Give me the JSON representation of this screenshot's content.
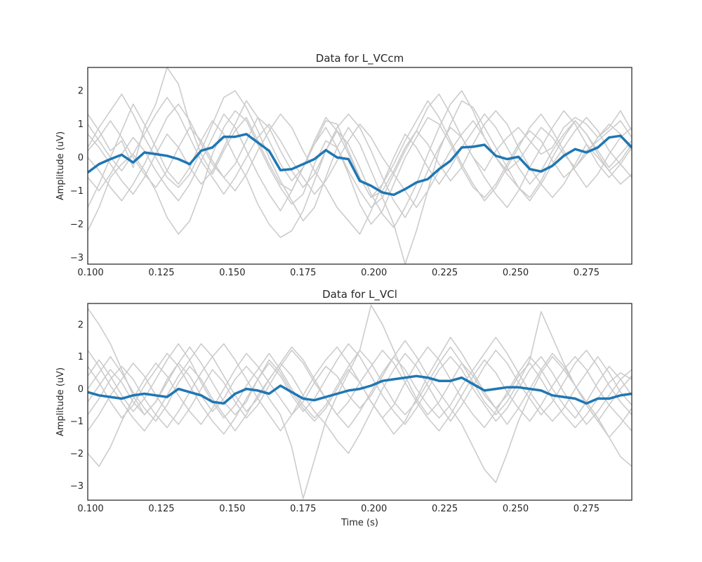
{
  "chart_data": [
    {
      "type": "line",
      "title": "Data for L_VCcm",
      "xlabel": "",
      "ylabel": "Amplitude (uV)",
      "xlim": [
        0.099,
        0.291
      ],
      "ylim": [
        -3.2,
        2.7
      ],
      "xticks": [
        0.1,
        0.125,
        0.15,
        0.175,
        0.2,
        0.225,
        0.25,
        0.275
      ],
      "xtick_labels": [
        "0.100",
        "0.125",
        "0.150",
        "0.175",
        "0.200",
        "0.225",
        "0.250",
        "0.275"
      ],
      "yticks": [
        -3,
        -2,
        -1,
        0,
        1,
        2
      ],
      "ytick_labels": [
        "−3",
        "−2",
        "−1",
        "0",
        "1",
        "2"
      ],
      "grid": false,
      "mean_color": "#1f77b4",
      "trial_color": "#cccccc",
      "x": [
        0.099,
        0.103,
        0.107,
        0.111,
        0.115,
        0.119,
        0.123,
        0.127,
        0.131,
        0.135,
        0.139,
        0.143,
        0.147,
        0.151,
        0.155,
        0.159,
        0.163,
        0.167,
        0.171,
        0.175,
        0.179,
        0.183,
        0.187,
        0.191,
        0.195,
        0.199,
        0.203,
        0.207,
        0.211,
        0.215,
        0.219,
        0.223,
        0.227,
        0.231,
        0.235,
        0.239,
        0.243,
        0.247,
        0.251,
        0.255,
        0.259,
        0.263,
        0.267,
        0.271,
        0.275,
        0.279,
        0.283,
        0.287,
        0.291
      ],
      "mean": [
        -0.45,
        -0.2,
        -0.05,
        0.08,
        -0.15,
        0.15,
        0.1,
        0.05,
        -0.05,
        -0.2,
        0.2,
        0.3,
        0.62,
        0.62,
        0.7,
        0.45,
        0.2,
        -0.38,
        -0.35,
        -0.2,
        -0.05,
        0.22,
        0.0,
        -0.05,
        -0.7,
        -0.85,
        -1.05,
        -1.12,
        -0.95,
        -0.75,
        -0.65,
        -0.35,
        -0.1,
        0.3,
        0.32,
        0.38,
        0.05,
        -0.05,
        0.02,
        -0.35,
        -0.42,
        -0.25,
        0.05,
        0.25,
        0.15,
        0.3,
        0.6,
        0.65,
        0.3
      ],
      "trials": [
        [
          1.3,
          0.8,
          0.2,
          0.5,
          -0.3,
          0.9,
          1.6,
          2.7,
          2.2,
          1.0,
          0.1,
          -0.5,
          0.2,
          0.8,
          1.2,
          0.5,
          -0.2,
          -0.8,
          -1.0,
          -0.3,
          0.4,
          1.1,
          1.0,
          0.2,
          -0.6,
          -1.2,
          -1.0,
          -0.4,
          0.3,
          0.8,
          1.5,
          1.9,
          1.3,
          0.6,
          0.0,
          -0.4,
          0.2,
          0.6,
          0.9,
          0.5,
          0.1,
          0.3,
          0.9,
          1.2,
          1.0,
          0.6,
          0.9,
          1.4,
          0.8
        ],
        [
          -2.2,
          -1.5,
          -0.6,
          -0.2,
          0.1,
          -0.4,
          -1.0,
          -1.8,
          -2.3,
          -1.9,
          -1.0,
          0.1,
          0.9,
          1.4,
          1.1,
          0.4,
          -0.3,
          -0.9,
          -1.4,
          -1.1,
          -0.2,
          0.5,
          0.3,
          -0.5,
          -1.4,
          -2.0,
          -1.6,
          -0.8,
          0.0,
          0.6,
          1.2,
          1.0,
          0.4,
          -0.3,
          -0.9,
          -1.2,
          -0.8,
          -0.2,
          0.4,
          0.8,
          0.5,
          -0.1,
          -0.6,
          -0.3,
          0.2,
          0.5,
          0.8,
          1.1,
          0.6
        ],
        [
          0.3,
          0.9,
          1.4,
          1.9,
          1.3,
          0.6,
          0.0,
          -0.6,
          -0.9,
          -0.5,
          0.2,
          1.0,
          1.8,
          2.0,
          1.5,
          0.8,
          0.0,
          -0.7,
          -1.3,
          -1.9,
          -1.5,
          -0.6,
          0.3,
          0.9,
          0.4,
          -0.4,
          -1.2,
          -2.0,
          -3.2,
          -2.2,
          -1.0,
          0.2,
          1.0,
          1.7,
          1.5,
          0.9,
          0.3,
          -0.3,
          -0.9,
          -1.2,
          -0.7,
          0.0,
          0.6,
          1.1,
          0.7,
          0.2,
          -0.3,
          0.1,
          0.5
        ],
        [
          -1.5,
          -0.8,
          0.0,
          0.8,
          1.6,
          1.0,
          0.3,
          -0.4,
          -0.8,
          -0.3,
          0.5,
          1.1,
          0.7,
          0.0,
          -0.6,
          -1.4,
          -2.0,
          -2.4,
          -2.2,
          -1.6,
          -0.7,
          0.2,
          0.9,
          1.3,
          0.9,
          0.2,
          -0.6,
          -1.3,
          -1.8,
          -1.2,
          -0.4,
          0.3,
          0.9,
          0.6,
          0.0,
          -0.6,
          -1.1,
          -1.5,
          -1.0,
          -0.3,
          0.3,
          0.9,
          1.4,
          1.0,
          0.4,
          -0.2,
          -0.6,
          -0.2,
          0.3
        ],
        [
          0.0,
          -0.4,
          -0.9,
          -1.3,
          -0.8,
          -0.2,
          0.5,
          1.2,
          1.6,
          1.1,
          0.4,
          -0.2,
          -0.6,
          -0.2,
          0.5,
          1.2,
          0.9,
          0.2,
          -0.4,
          -0.9,
          -0.5,
          0.2,
          0.8,
          0.4,
          -0.3,
          -1.1,
          -1.7,
          -2.1,
          -1.5,
          -0.8,
          0.1,
          0.9,
          1.6,
          2.0,
          1.4,
          0.6,
          0.0,
          -0.4,
          -0.1,
          0.4,
          0.9,
          0.6,
          0.1,
          -0.3,
          0.1,
          0.6,
          1.0,
          0.7,
          0.2
        ],
        [
          0.7,
          0.3,
          -0.2,
          -0.7,
          -1.1,
          -0.6,
          0.1,
          0.7,
          0.3,
          -0.3,
          -0.8,
          -0.4,
          0.3,
          1.0,
          1.7,
          1.2,
          0.5,
          -0.2,
          -0.7,
          -0.3,
          0.4,
          0.9,
          0.3,
          -0.4,
          -1.0,
          -1.5,
          -1.2,
          -0.5,
          0.2,
          0.8,
          0.4,
          -0.2,
          -0.7,
          -0.3,
          0.4,
          1.0,
          1.4,
          1.0,
          0.3,
          -0.3,
          -0.8,
          -1.2,
          -0.8,
          -0.2,
          0.4,
          0.0,
          -0.4,
          -0.8,
          -0.5
        ],
        [
          -0.6,
          -1.0,
          -0.5,
          0.1,
          0.6,
          0.2,
          -0.4,
          -0.9,
          -1.3,
          -0.8,
          -0.1,
          0.6,
          1.3,
          0.9,
          0.2,
          -0.5,
          -1.1,
          -1.6,
          -1.0,
          -0.3,
          0.5,
          1.2,
          0.8,
          0.1,
          -0.6,
          -1.2,
          -0.8,
          -0.2,
          0.5,
          1.1,
          1.7,
          1.2,
          0.5,
          -0.2,
          -0.8,
          -1.3,
          -0.9,
          -0.3,
          0.3,
          0.9,
          1.3,
          0.8,
          0.2,
          -0.4,
          -0.9,
          -0.5,
          0.1,
          0.6,
          0.9
        ],
        [
          0.2,
          0.6,
          1.1,
          0.6,
          0.0,
          -0.5,
          -0.9,
          -0.4,
          0.3,
          0.9,
          0.5,
          -0.1,
          -0.6,
          -1.0,
          -0.5,
          0.2,
          0.8,
          1.3,
          0.9,
          0.2,
          -0.4,
          -0.9,
          -1.5,
          -1.9,
          -2.3,
          -1.6,
          -0.8,
          0.0,
          0.7,
          0.3,
          -0.3,
          -0.8,
          -0.3,
          0.3,
          0.8,
          1.3,
          0.9,
          0.3,
          -0.3,
          -0.8,
          -0.4,
          0.2,
          0.7,
          1.1,
          0.7,
          0.1,
          -0.4,
          -0.1,
          0.4
        ],
        [
          1.0,
          0.5,
          0.0,
          -0.4,
          0.1,
          0.7,
          1.3,
          1.8,
          1.3,
          0.6,
          -0.1,
          -0.6,
          -1.1,
          -0.6,
          0.0,
          0.6,
          1.0,
          0.5,
          -0.1,
          -0.6,
          -1.1,
          -0.7,
          -0.1,
          0.5,
          1.0,
          0.6,
          0.0,
          -0.5,
          -1.0,
          -1.5,
          -1.0,
          -0.4,
          0.2,
          0.7,
          1.1,
          0.6,
          0.0,
          -0.5,
          -0.9,
          -1.3,
          -0.8,
          -0.2,
          0.3,
          0.8,
          1.2,
          0.8,
          0.2,
          -0.2,
          -0.6
        ]
      ]
    },
    {
      "type": "line",
      "title": "Data for L_VCl",
      "xlabel": "Time (s)",
      "ylabel": "Amplitude (uV)",
      "xlim": [
        0.099,
        0.291
      ],
      "ylim": [
        -3.45,
        2.65
      ],
      "xticks": [
        0.1,
        0.125,
        0.15,
        0.175,
        0.2,
        0.225,
        0.25,
        0.275
      ],
      "xtick_labels": [
        "0.100",
        "0.125",
        "0.150",
        "0.175",
        "0.200",
        "0.225",
        "0.250",
        "0.275"
      ],
      "yticks": [
        -3,
        -2,
        -1,
        0,
        1,
        2
      ],
      "ytick_labels": [
        "−3",
        "−2",
        "−1",
        "0",
        "1",
        "2"
      ],
      "grid": false,
      "mean_color": "#1f77b4",
      "trial_color": "#cccccc",
      "x": [
        0.099,
        0.103,
        0.107,
        0.111,
        0.115,
        0.119,
        0.123,
        0.127,
        0.131,
        0.135,
        0.139,
        0.143,
        0.147,
        0.151,
        0.155,
        0.159,
        0.163,
        0.167,
        0.171,
        0.175,
        0.179,
        0.183,
        0.187,
        0.191,
        0.195,
        0.199,
        0.203,
        0.207,
        0.211,
        0.215,
        0.219,
        0.223,
        0.227,
        0.231,
        0.235,
        0.239,
        0.243,
        0.247,
        0.251,
        0.255,
        0.259,
        0.263,
        0.267,
        0.271,
        0.275,
        0.279,
        0.283,
        0.287,
        0.291
      ],
      "mean": [
        -0.1,
        -0.2,
        -0.25,
        -0.3,
        -0.2,
        -0.15,
        -0.2,
        -0.25,
        0.0,
        -0.1,
        -0.2,
        -0.4,
        -0.45,
        -0.15,
        0.0,
        -0.05,
        -0.15,
        0.1,
        -0.1,
        -0.3,
        -0.35,
        -0.25,
        -0.15,
        -0.05,
        0.0,
        0.1,
        0.25,
        0.3,
        0.35,
        0.4,
        0.35,
        0.25,
        0.25,
        0.35,
        0.15,
        -0.05,
        0.0,
        0.05,
        0.05,
        0.0,
        -0.05,
        -0.2,
        -0.25,
        -0.3,
        -0.45,
        -0.3,
        -0.3,
        -0.2,
        -0.15
      ],
      "trials": [
        [
          2.5,
          2.0,
          1.4,
          0.6,
          -0.2,
          -0.8,
          -0.4,
          0.3,
          0.8,
          0.4,
          -0.2,
          -0.7,
          -0.3,
          0.3,
          0.7,
          0.3,
          -0.3,
          -0.8,
          -1.8,
          -3.4,
          -2.2,
          -1.0,
          -0.2,
          0.5,
          1.2,
          2.6,
          2.0,
          1.2,
          0.4,
          -0.3,
          -0.8,
          -0.4,
          0.2,
          0.8,
          0.4,
          -0.2,
          -0.6,
          -0.2,
          0.4,
          0.8,
          0.3,
          -0.3,
          -0.8,
          -1.2,
          -0.8,
          -0.3,
          0.2,
          0.5,
          0.3
        ],
        [
          -2.0,
          -2.4,
          -1.8,
          -1.0,
          -0.3,
          0.3,
          0.8,
          0.4,
          -0.2,
          -0.7,
          -1.1,
          -0.6,
          0.0,
          0.6,
          1.1,
          0.7,
          0.2,
          -0.3,
          -0.8,
          -0.4,
          0.2,
          0.7,
          0.4,
          -0.2,
          -0.6,
          -0.2,
          0.4,
          1.0,
          1.5,
          1.0,
          0.4,
          -0.1,
          -0.6,
          -1.1,
          -1.8,
          -2.5,
          -2.9,
          -2.0,
          -1.0,
          -0.2,
          0.5,
          1.0,
          0.6,
          0.1,
          -0.4,
          -0.9,
          -1.5,
          -2.1,
          -2.4
        ],
        [
          0.4,
          0.9,
          0.4,
          -0.2,
          -0.7,
          -0.3,
          0.3,
          0.9,
          1.4,
          0.9,
          0.2,
          -0.4,
          -0.9,
          -0.5,
          0.1,
          0.6,
          1.1,
          0.6,
          0.0,
          -0.5,
          -0.9,
          -0.5,
          0.1,
          0.7,
          1.2,
          0.8,
          0.2,
          -0.4,
          -0.8,
          -0.4,
          0.2,
          0.8,
          1.3,
          0.8,
          0.2,
          -0.4,
          -0.8,
          -0.4,
          0.2,
          0.9,
          2.4,
          1.6,
          0.8,
          0.1,
          -0.5,
          -1.0,
          -0.5,
          0.0,
          0.4
        ],
        [
          -0.8,
          -0.3,
          0.3,
          0.7,
          0.3,
          -0.3,
          -0.8,
          -1.2,
          -0.7,
          -0.1,
          0.5,
          1.0,
          1.4,
          0.9,
          0.3,
          -0.3,
          -0.8,
          -1.3,
          -0.8,
          -0.2,
          0.4,
          0.9,
          1.3,
          0.8,
          0.2,
          -0.4,
          -0.9,
          -1.4,
          -1.0,
          -0.3,
          0.4,
          1.0,
          1.6,
          1.1,
          0.5,
          -0.1,
          -0.6,
          -1.1,
          -0.6,
          0.0,
          0.6,
          1.1,
          0.7,
          0.1,
          -0.5,
          -1.0,
          -1.5,
          -1.1,
          -0.6
        ],
        [
          0.0,
          0.5,
          1.0,
          0.5,
          -0.1,
          -0.6,
          -1.0,
          -0.5,
          0.2,
          0.7,
          0.3,
          -0.3,
          -0.8,
          -1.3,
          -0.8,
          -0.2,
          0.3,
          0.8,
          0.4,
          -0.2,
          -0.7,
          -1.1,
          -1.6,
          -2.0,
          -1.4,
          -0.7,
          0.0,
          0.6,
          1.1,
          0.7,
          0.1,
          -0.5,
          -1.0,
          -0.5,
          0.1,
          0.7,
          1.2,
          0.8,
          0.2,
          -0.3,
          -0.8,
          -0.4,
          0.2,
          0.8,
          1.2,
          0.7,
          0.1,
          -0.4,
          -0.8
        ],
        [
          1.2,
          0.7,
          0.1,
          -0.4,
          -0.9,
          -1.3,
          -0.8,
          -0.2,
          0.4,
          0.9,
          1.4,
          1.0,
          0.4,
          -0.2,
          -0.7,
          -0.3,
          0.3,
          0.8,
          1.3,
          0.9,
          0.3,
          -0.3,
          -0.8,
          -0.4,
          0.2,
          0.7,
          1.2,
          0.8,
          0.2,
          -0.4,
          -0.9,
          -1.3,
          -0.8,
          -0.2,
          0.4,
          0.9,
          0.5,
          -0.1,
          -0.6,
          -1.0,
          -0.5,
          0.1,
          0.6,
          1.0,
          0.6,
          0.0,
          -0.5,
          -0.9,
          -1.3
        ],
        [
          -1.3,
          -0.8,
          -0.2,
          0.3,
          0.8,
          0.4,
          -0.2,
          -0.7,
          -1.1,
          -0.6,
          0.0,
          0.6,
          0.2,
          -0.4,
          -0.9,
          -0.5,
          0.1,
          0.7,
          1.2,
          0.8,
          0.2,
          -0.3,
          -0.8,
          -1.2,
          -0.7,
          -0.1,
          0.5,
          1.0,
          0.6,
          0.0,
          -0.5,
          -0.9,
          -0.5,
          0.1,
          0.6,
          1.1,
          1.6,
          1.1,
          0.5,
          -0.1,
          -0.6,
          -1.0,
          -0.6,
          0.0,
          0.5,
          1.0,
          0.5,
          -0.1,
          -0.5
        ],
        [
          0.7,
          0.2,
          -0.4,
          -0.9,
          -0.5,
          0.1,
          0.6,
          1.1,
          0.7,
          0.1,
          -0.5,
          -1.0,
          -1.4,
          -0.9,
          -0.3,
          0.3,
          0.8,
          0.4,
          -0.2,
          -0.7,
          -0.3,
          0.3,
          0.9,
          1.4,
          1.0,
          0.4,
          -0.2,
          -0.7,
          -1.1,
          -0.6,
          0.0,
          0.6,
          1.0,
          0.6,
          0.0,
          -0.5,
          -1.0,
          -0.6,
          0.0,
          0.6,
          1.0,
          0.5,
          -0.1,
          -0.6,
          -1.1,
          -0.7,
          -0.2,
          0.3,
          0.6
        ],
        [
          -0.4,
          0.1,
          0.6,
          0.2,
          -0.4,
          -0.8,
          -0.4,
          0.2,
          0.8,
          1.3,
          0.8,
          0.2,
          -0.4,
          -0.8,
          -0.4,
          0.3,
          0.9,
          0.5,
          -0.1,
          -0.6,
          -1.0,
          -0.6,
          0.0,
          0.6,
          0.2,
          -0.4,
          -0.9,
          -0.5,
          0.2,
          0.8,
          1.3,
          0.9,
          0.3,
          -0.3,
          -0.8,
          -1.2,
          -0.7,
          -0.1,
          0.5,
          1.0,
          0.6,
          0.0,
          -0.5,
          -0.9,
          -0.4,
          0.2,
          0.7,
          0.3,
          -0.2
        ]
      ]
    }
  ]
}
